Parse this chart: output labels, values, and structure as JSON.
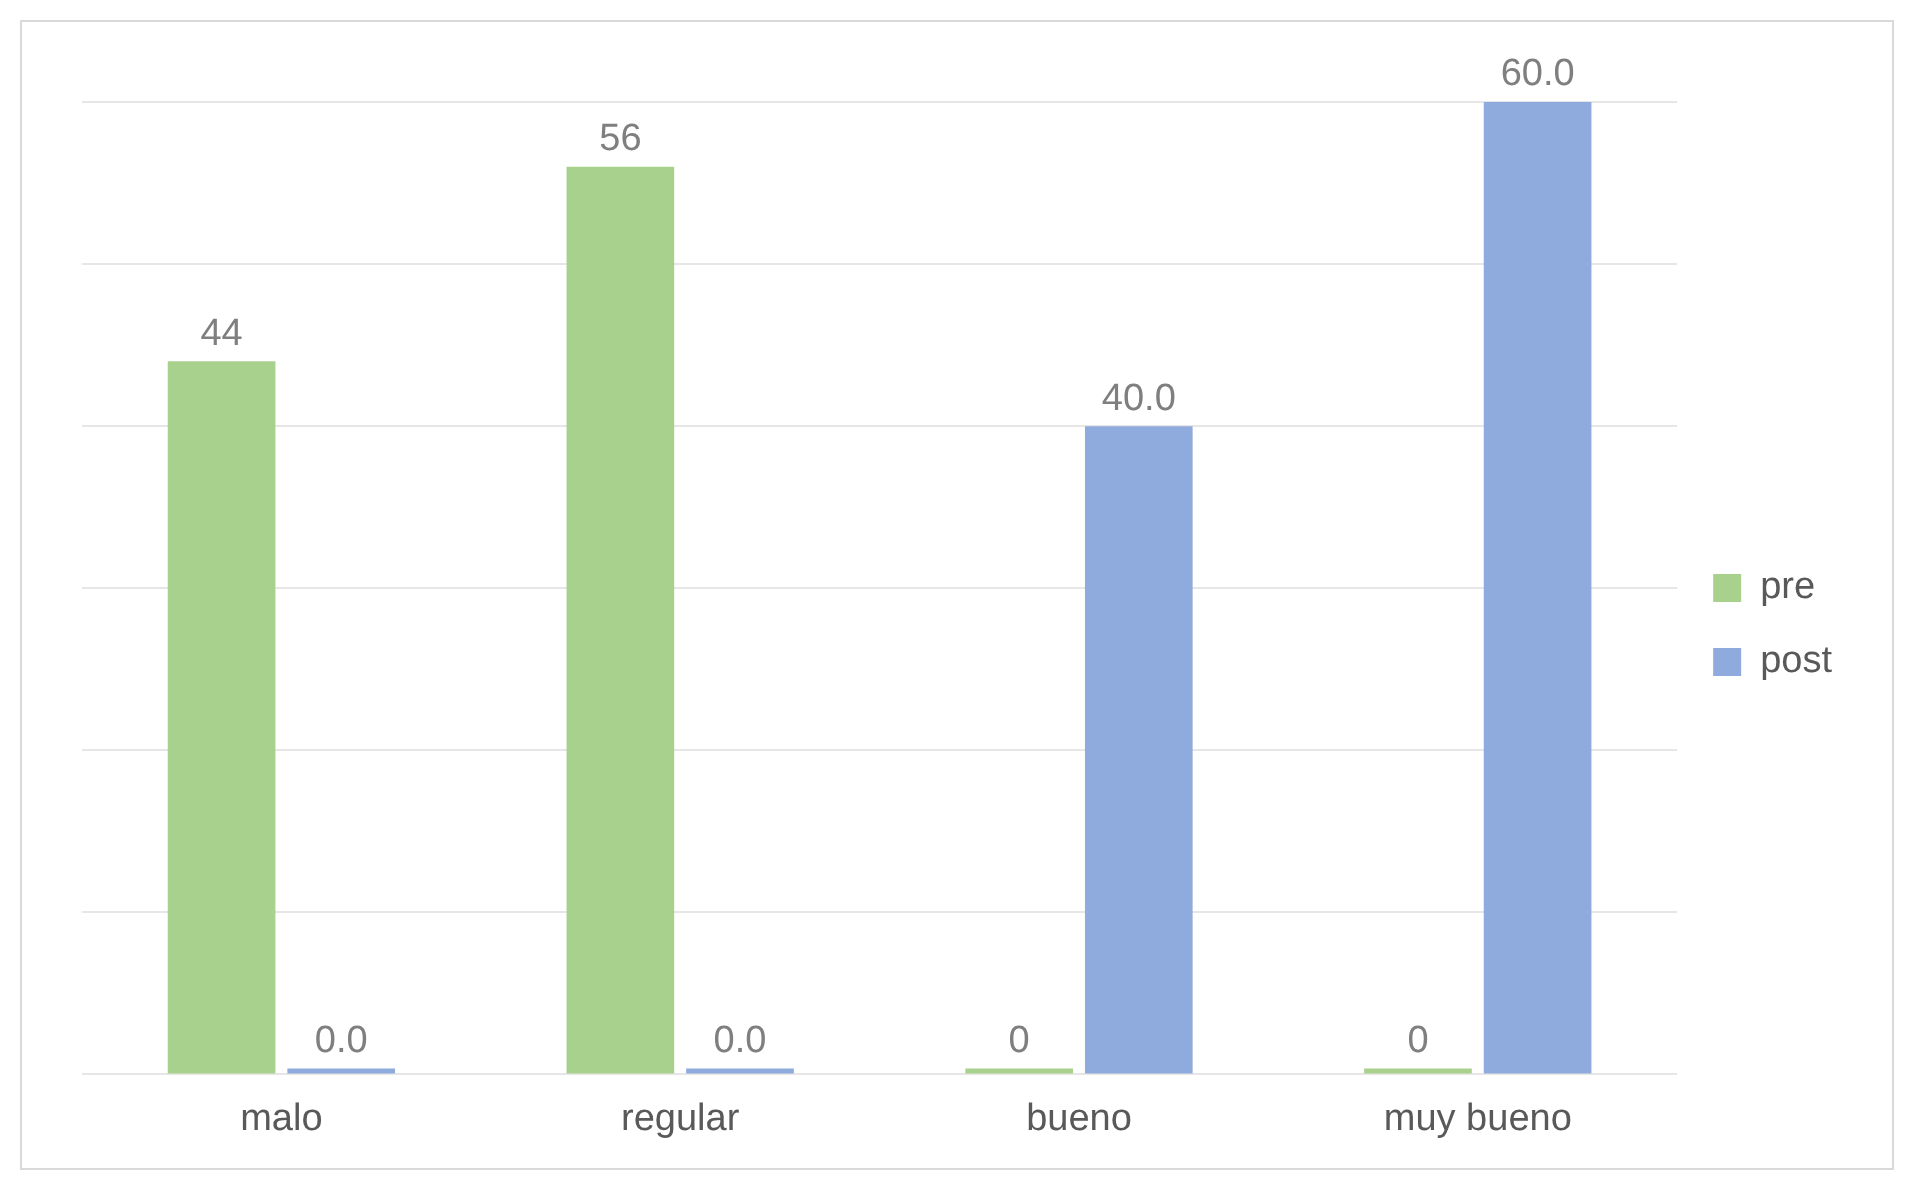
{
  "chart_data": {
    "type": "bar",
    "categories": [
      "malo",
      "regular",
      "bueno",
      "muy bueno"
    ],
    "series": [
      {
        "name": "pre",
        "color": "#a9d18e",
        "values": [
          44,
          56,
          0,
          0
        ],
        "value_labels": [
          "44",
          "56",
          "0",
          "0"
        ]
      },
      {
        "name": "post",
        "color": "#8faadc",
        "values": [
          0,
          0,
          40,
          60
        ],
        "value_labels": [
          "0.0",
          "0.0",
          "40.0",
          "60.0"
        ]
      }
    ],
    "ylim": [
      0,
      60
    ],
    "grid": "y",
    "legend": "right",
    "tick_labels": "x"
  }
}
